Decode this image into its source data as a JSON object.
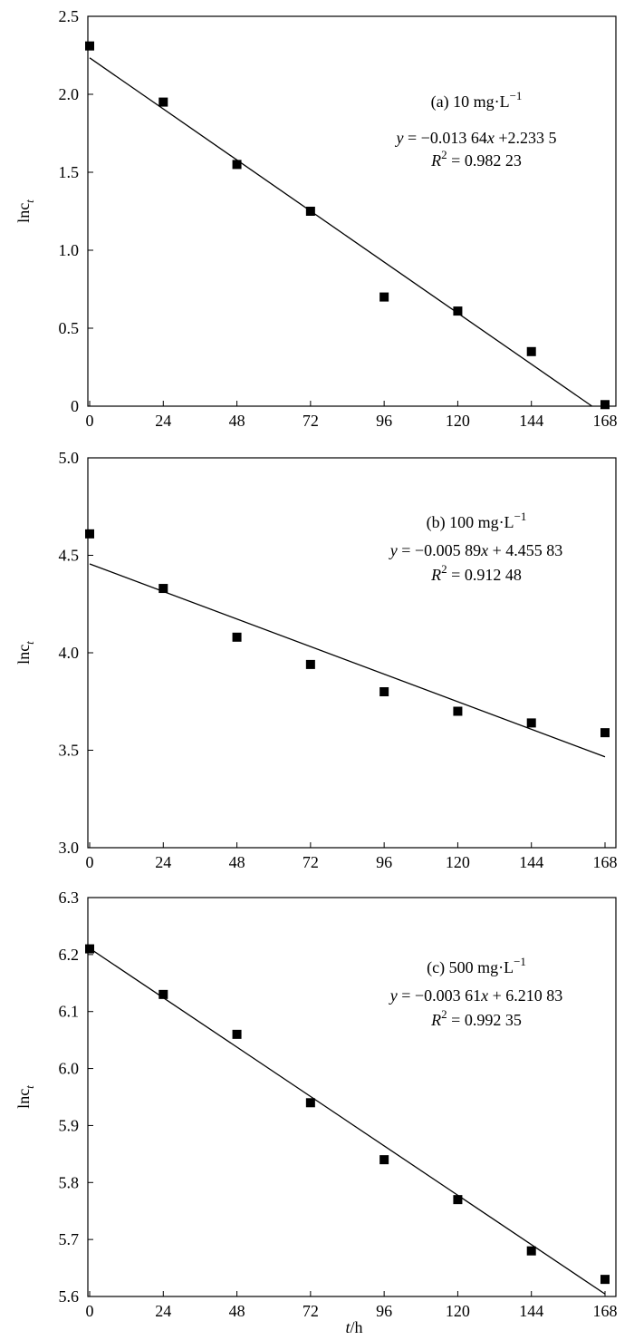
{
  "chart_data": [
    {
      "type": "scatter",
      "panel": "a",
      "annotation_label": "(a) 10 mg·L",
      "annotation_label_sup": "−1",
      "equation": {
        "y": "y",
        "mid": " = −0.013 64",
        "x": "x",
        "rest": " +2.233 5"
      },
      "r2": {
        "r": "R",
        "sup": "2",
        "rest": " = 0.982 23"
      },
      "ylabel": {
        "base": "lnc",
        "sub": "t"
      },
      "xlabel": "",
      "xlim": [
        0,
        168
      ],
      "ylim": [
        0,
        2.5
      ],
      "x_ticks": [
        "0",
        "24",
        "48",
        "72",
        "96",
        "120",
        "144",
        "168"
      ],
      "y_ticks": [
        "0",
        "0.5",
        "1.0",
        "1.5",
        "2.0",
        "2.5"
      ],
      "points": {
        "x": [
          0,
          24,
          48,
          72,
          96,
          120,
          144,
          168
        ],
        "y": [
          2.31,
          1.95,
          1.55,
          1.25,
          0.7,
          0.61,
          0.35,
          0.01
        ]
      },
      "fit": {
        "slope": -0.01364,
        "intercept": 2.2335
      }
    },
    {
      "type": "scatter",
      "panel": "b",
      "annotation_label": "(b) 100 mg·L",
      "annotation_label_sup": "−1",
      "equation": {
        "y": "y",
        "mid": " = −0.005 89",
        "x": "x",
        "rest": " + 4.455 83"
      },
      "r2": {
        "r": "R",
        "sup": "2",
        "rest": " = 0.912 48"
      },
      "ylabel": {
        "base": "lnc",
        "sub": "t"
      },
      "xlabel": "",
      "xlim": [
        0,
        168
      ],
      "ylim": [
        3.0,
        5.0
      ],
      "x_ticks": [
        "0",
        "24",
        "48",
        "72",
        "96",
        "120",
        "144",
        "168"
      ],
      "y_ticks": [
        "3.0",
        "3.5",
        "4.0",
        "4.5",
        "5.0"
      ],
      "points": {
        "x": [
          0,
          24,
          48,
          72,
          96,
          120,
          144,
          168
        ],
        "y": [
          4.61,
          4.33,
          4.08,
          3.94,
          3.8,
          3.7,
          3.64,
          3.59
        ]
      },
      "fit": {
        "slope": -0.00589,
        "intercept": 4.45583
      }
    },
    {
      "type": "scatter",
      "panel": "c",
      "annotation_label": "(c) 500 mg·L",
      "annotation_label_sup": "−1",
      "equation": {
        "y": "y",
        "mid": " = −0.003 61",
        "x": "x",
        "rest": " + 6.210 83"
      },
      "r2": {
        "r": "R",
        "sup": "2",
        "rest": " = 0.992 35"
      },
      "ylabel": {
        "base": "lnc",
        "sub": "t"
      },
      "xlabel": {
        "t": "t",
        "rest": "/h"
      },
      "xlim": [
        0,
        168
      ],
      "ylim": [
        5.6,
        6.3
      ],
      "x_ticks": [
        "0",
        "24",
        "48",
        "72",
        "96",
        "120",
        "144",
        "168"
      ],
      "y_ticks": [
        "5.6",
        "5.7",
        "5.8",
        "5.9",
        "6.0",
        "6.1",
        "6.2",
        "6.3"
      ],
      "points": {
        "x": [
          0,
          24,
          48,
          72,
          96,
          120,
          144,
          168
        ],
        "y": [
          6.21,
          6.13,
          6.06,
          5.94,
          5.84,
          5.77,
          5.68,
          5.63
        ]
      },
      "fit": {
        "slope": -0.00361,
        "intercept": 6.21083
      }
    }
  ]
}
